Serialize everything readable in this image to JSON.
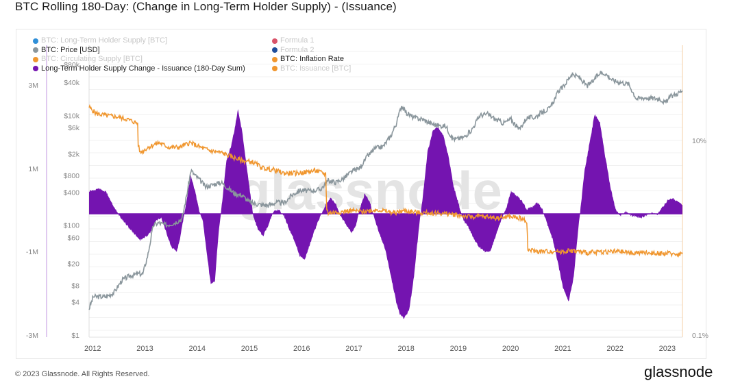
{
  "title": "BTC Rolling 180-Day: (Change in Long-Term Holder Supply) - (Issuance)",
  "footer": {
    "copyright": "© 2023 Glassnode. All Rights Reserved.",
    "brand": "glassnode"
  },
  "watermark": "glassnode",
  "legend": {
    "left": [
      {
        "label": "BTC: Long-Term Holder Supply [BTC]",
        "color": "#2f8fd8",
        "active": false
      },
      {
        "label": "BTC: Price [USD]",
        "color": "#8a969c",
        "active": true
      },
      {
        "label": "BTC: Circulating Supply [BTC]",
        "color": "#f0962e",
        "active": false
      },
      {
        "label": "Long-Term Holder Supply Change - Issuance (180-Day Sum)",
        "color": "#7414b0",
        "active": true
      }
    ],
    "right": [
      {
        "label": "Formula 1",
        "color": "#d9546a",
        "active": false
      },
      {
        "label": "Formula 2",
        "color": "#1f4e9c",
        "active": false
      },
      {
        "label": "BTC: Inflation Rate",
        "color": "#f0962e",
        "active": true
      },
      {
        "label": "BTC: Issuance [BTC]",
        "color": "#f0962e",
        "active": false
      }
    ]
  },
  "chart_data": {
    "type": "area",
    "title": "BTC Rolling 180-Day: (Change in Long-Term Holder Supply) - (Issuance)",
    "xlabel": "",
    "x_ticks": [
      "2012",
      "2013",
      "2014",
      "2015",
      "2016",
      "2017",
      "2018",
      "2019",
      "2020",
      "2021",
      "2022",
      "2023"
    ],
    "x_range": [
      2011.97,
      2023.33
    ],
    "left_axis": {
      "ticks": [
        "3M",
        "1M",
        "-1M",
        "-3M"
      ],
      "range": [
        -3000000,
        3000000
      ],
      "scale": "symlog"
    },
    "price_axis": {
      "ticks": [
        "$80k",
        "$40k",
        "$10k",
        "$6k",
        "$2k",
        "$800",
        "$400",
        "$100",
        "$60",
        "$20",
        "$8",
        "$4",
        "$1"
      ],
      "range": [
        1,
        80000
      ],
      "scale": "log"
    },
    "right_axis": {
      "ticks": [
        "10%",
        "0.1%"
      ],
      "range": [
        0.1,
        30
      ],
      "scale": "log"
    },
    "grid": true,
    "legend_position": "top-left",
    "series": [
      {
        "name": "Long-Term Holder Supply Change - Issuance (180-Day Sum)",
        "kind": "area",
        "color": "#7414b0",
        "axis": "left",
        "x": [
          2011.97,
          2012.05,
          2012.15,
          2012.3,
          2012.45,
          2012.6,
          2012.75,
          2012.85,
          2012.95,
          2013.05,
          2013.15,
          2013.25,
          2013.35,
          2013.45,
          2013.55,
          2013.65,
          2013.72,
          2013.78,
          2013.85,
          2013.92,
          2014.0,
          2014.08,
          2014.15,
          2014.22,
          2014.3,
          2014.38,
          2014.45,
          2014.52,
          2014.6,
          2014.68,
          2014.75,
          2014.82,
          2014.9,
          2014.97,
          2015.05,
          2015.12,
          2015.2,
          2015.3,
          2015.4,
          2015.5,
          2015.6,
          2015.7,
          2015.8,
          2015.9,
          2016.0,
          2016.1,
          2016.2,
          2016.3,
          2016.4,
          2016.5,
          2016.6,
          2016.7,
          2016.8,
          2016.9,
          2017.0,
          2017.08,
          2017.15,
          2017.25,
          2017.35,
          2017.45,
          2017.55,
          2017.65,
          2017.75,
          2017.85,
          2017.92,
          2018.0,
          2018.1,
          2018.2,
          2018.3,
          2018.4,
          2018.45,
          2018.55,
          2018.65,
          2018.75,
          2018.85,
          2018.95,
          2019.05,
          2019.15,
          2019.25,
          2019.35,
          2019.45,
          2019.55,
          2019.65,
          2019.75,
          2019.85,
          2019.95,
          2020.05,
          2020.15,
          2020.25,
          2020.35,
          2020.45,
          2020.55,
          2020.65,
          2020.75,
          2020.85,
          2020.95,
          2021.05,
          2021.15,
          2021.25,
          2021.35,
          2021.45,
          2021.55,
          2021.65,
          2021.75,
          2021.85,
          2021.95,
          2022.05,
          2022.15,
          2022.25,
          2022.35,
          2022.45,
          2022.55,
          2022.65,
          2022.75,
          2022.85,
          2022.95,
          2023.05,
          2023.15,
          2023.25,
          2023.33
        ],
        "values": [
          500000,
          520000,
          560000,
          480000,
          150000,
          -150000,
          -400000,
          -550000,
          -700000,
          -620000,
          -480000,
          -200000,
          -100000,
          -500000,
          -900000,
          -1000000,
          -600000,
          -100000,
          400000,
          850000,
          500000,
          50000,
          -200000,
          -1000000,
          -1800000,
          -1700000,
          -500000,
          300000,
          1200000,
          1500000,
          1900000,
          2400000,
          1900000,
          1200000,
          500000,
          -100000,
          -400000,
          -600000,
          -300000,
          50000,
          100000,
          -50000,
          -400000,
          -700000,
          -1100000,
          -1200000,
          -800000,
          -400000,
          -50000,
          200000,
          350000,
          200000,
          -100000,
          -300000,
          -500000,
          -300000,
          100000,
          450000,
          250000,
          -200000,
          -600000,
          -1000000,
          -1600000,
          -2200000,
          -2500000,
          -2600000,
          -2400000,
          -1500000,
          -200000,
          800000,
          1400000,
          1900000,
          2000000,
          1800000,
          1300000,
          600000,
          200000,
          -200000,
          -400000,
          -700000,
          -900000,
          -1000000,
          -1000000,
          -600000,
          -200000,
          100000,
          500000,
          400000,
          300000,
          100000,
          150000,
          250000,
          100000,
          -300000,
          -700000,
          -1300000,
          -1900000,
          -2200000,
          -1600000,
          -200000,
          900000,
          1600000,
          2300000,
          2100000,
          1300000,
          600000,
          100000,
          -50000,
          50000,
          -50000,
          -80000,
          -100000,
          -30000,
          30000,
          -20000,
          150000,
          300000,
          350000,
          250000,
          180000
        ],
        "notes": "approximate, read from symlog-scaled axis"
      },
      {
        "name": "BTC: Price [USD]",
        "kind": "line",
        "color": "#8a969c",
        "axis": "price",
        "x": [
          2011.97,
          2012.05,
          2012.15,
          2012.3,
          2012.45,
          2012.6,
          2012.75,
          2012.9,
          2013.0,
          2013.1,
          2013.2,
          2013.3,
          2013.45,
          2013.6,
          2013.75,
          2013.85,
          2013.92,
          2014.0,
          2014.1,
          2014.2,
          2014.35,
          2014.5,
          2014.6,
          2014.75,
          2014.9,
          2015.05,
          2015.2,
          2015.4,
          2015.55,
          2015.7,
          2015.85,
          2016.0,
          2016.2,
          2016.4,
          2016.55,
          2016.7,
          2016.85,
          2017.0,
          2017.15,
          2017.3,
          2017.45,
          2017.6,
          2017.75,
          2017.85,
          2017.95,
          2018.05,
          2018.2,
          2018.35,
          2018.5,
          2018.65,
          2018.8,
          2018.92,
          2019.0,
          2019.15,
          2019.3,
          2019.45,
          2019.6,
          2019.75,
          2019.9,
          2020.05,
          2020.2,
          2020.35,
          2020.5,
          2020.65,
          2020.8,
          2020.95,
          2021.05,
          2021.2,
          2021.35,
          2021.5,
          2021.6,
          2021.75,
          2021.85,
          2022.0,
          2022.15,
          2022.3,
          2022.45,
          2022.6,
          2022.75,
          2022.9,
          2023.0,
          2023.1,
          2023.2,
          2023.33
        ],
        "values": [
          3,
          5,
          5,
          5,
          6,
          10,
          12,
          13,
          13,
          30,
          100,
          110,
          100,
          110,
          130,
          400,
          1000,
          800,
          650,
          500,
          550,
          600,
          500,
          380,
          350,
          260,
          240,
          230,
          260,
          250,
          350,
          430,
          420,
          450,
          650,
          600,
          720,
          950,
          1100,
          1800,
          2500,
          2700,
          4300,
          7000,
          15000,
          11000,
          9000,
          8500,
          7200,
          6500,
          6400,
          3800,
          3700,
          4000,
          5500,
          10000,
          10500,
          8500,
          7200,
          8500,
          5500,
          9000,
          9200,
          11500,
          13500,
          27000,
          33000,
          55000,
          50000,
          34000,
          40000,
          60000,
          58000,
          43000,
          40000,
          37000,
          20000,
          21000,
          20500,
          20000,
          16800,
          22000,
          24000,
          28000
        ]
      },
      {
        "name": "BTC: Inflation Rate",
        "kind": "line",
        "color": "#f0962e",
        "axis": "right",
        "x": [
          2011.97,
          2012.1,
          2012.3,
          2012.5,
          2012.7,
          2012.9,
          2012.91,
          2012.95,
          2013.1,
          2013.3,
          2013.5,
          2013.7,
          2013.9,
          2014.1,
          2014.3,
          2014.5,
          2014.7,
          2014.9,
          2015.1,
          2015.3,
          2015.5,
          2015.7,
          2015.9,
          2016.1,
          2016.3,
          2016.5,
          2016.52,
          2016.55,
          2016.8,
          2017.0,
          2017.2,
          2017.5,
          2017.8,
          2018.0,
          2018.3,
          2018.6,
          2018.9,
          2019.2,
          2019.5,
          2019.8,
          2020.0,
          2020.2,
          2020.35,
          2020.37,
          2020.6,
          2020.9,
          2021.0,
          2021.2,
          2021.5,
          2021.8,
          2022.1,
          2022.4,
          2022.7,
          2023.0,
          2023.33
        ],
        "values": [
          22,
          19,
          18,
          17.5,
          16.5,
          15,
          9,
          7.5,
          8.5,
          9.5,
          8.5,
          8.5,
          9.5,
          8.5,
          7.8,
          7.5,
          6.8,
          6.2,
          6.0,
          5.2,
          5.0,
          4.6,
          4.6,
          4.7,
          4.9,
          4.5,
          2.0,
          1.8,
          1.85,
          1.9,
          1.85,
          1.95,
          1.8,
          1.9,
          1.8,
          1.8,
          1.75,
          1.65,
          1.65,
          1.6,
          1.65,
          1.6,
          1.5,
          0.75,
          0.72,
          0.73,
          0.72,
          0.74,
          0.7,
          0.72,
          0.72,
          0.7,
          0.7,
          0.69,
          0.68
        ]
      }
    ]
  }
}
